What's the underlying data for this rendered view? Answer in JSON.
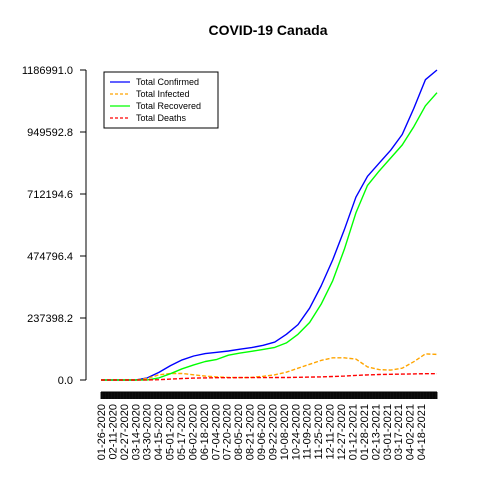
{
  "chart_data": {
    "type": "line",
    "title": "COVID-19 Canada",
    "xlabel": "",
    "ylabel": "",
    "ylim": [
      0,
      1186991.0
    ],
    "y_ticks": [
      "0.0",
      "237398.2",
      "474796.4",
      "712194.6",
      "949592.8",
      "1186991.0"
    ],
    "y_tick_values": [
      0,
      237398.2,
      474796.4,
      712194.6,
      949592.8,
      1186991.0
    ],
    "x_tick_labels": [
      "01-26-2020",
      "02-11-2020",
      "02-27-2020",
      "03-14-2020",
      "03-30-2020",
      "04-15-2020",
      "05-01-2020",
      "05-17-2020",
      "06-02-2020",
      "06-18-2020",
      "07-04-2020",
      "07-20-2020",
      "08-05-2020",
      "08-21-2020",
      "09-06-2020",
      "09-22-2020",
      "10-08-2020",
      "10-24-2020",
      "11-09-2020",
      "11-25-2020",
      "12-11-2020",
      "12-27-2020",
      "01-12-2021",
      "01-28-2021",
      "02-13-2021",
      "03-01-2021",
      "03-17-2021",
      "04-02-2021",
      "04-18-2021"
    ],
    "legend_position": "top-left",
    "x": [
      "01-26-2020",
      "02-11-2020",
      "02-27-2020",
      "03-14-2020",
      "03-30-2020",
      "04-15-2020",
      "05-01-2020",
      "05-17-2020",
      "06-02-2020",
      "06-18-2020",
      "07-04-2020",
      "07-20-2020",
      "08-05-2020",
      "08-21-2020",
      "09-06-2020",
      "09-22-2020",
      "10-08-2020",
      "10-24-2020",
      "11-09-2020",
      "11-25-2020",
      "12-11-2020",
      "12-27-2020",
      "01-12-2021",
      "01-28-2021",
      "02-13-2021",
      "03-01-2021",
      "03-17-2021",
      "04-02-2021",
      "04-18-2021",
      "04-30-2021"
    ],
    "series": [
      {
        "name": "Total Confirmed",
        "color": "#0000ff",
        "dash": "solid",
        "values": [
          1,
          7,
          12,
          150,
          8000,
          29000,
          55000,
          77000,
          92000,
          101000,
          106000,
          111000,
          118000,
          124000,
          133000,
          145000,
          175000,
          212000,
          275000,
          360000,
          460000,
          575000,
          700000,
          780000,
          830000,
          880000,
          940000,
          1040000,
          1150000,
          1186991
        ]
      },
      {
        "name": "Total Infected",
        "color": "#ffa500",
        "dash": "dashed",
        "values": [
          1,
          6,
          6,
          120,
          6000,
          20000,
          25000,
          25000,
          20000,
          15000,
          12000,
          10000,
          9000,
          10000,
          14000,
          20000,
          30000,
          45000,
          60000,
          75000,
          85000,
          85000,
          80000,
          50000,
          40000,
          38000,
          45000,
          70000,
          100000,
          98000
        ]
      },
      {
        "name": "Total Recovered",
        "color": "#00ff00",
        "dash": "solid",
        "values": [
          0,
          1,
          5,
          10,
          500,
          8000,
          24000,
          43000,
          58000,
          71000,
          79000,
          95000,
          103000,
          110000,
          117000,
          125000,
          142000,
          175000,
          220000,
          290000,
          380000,
          500000,
          640000,
          745000,
          800000,
          850000,
          900000,
          970000,
          1050000,
          1100000
        ]
      },
      {
        "name": "Total Deaths",
        "color": "#ff0000",
        "dash": "dashed",
        "values": [
          0,
          0,
          0,
          1,
          200,
          1300,
          3300,
          5800,
          7400,
          8200,
          8700,
          8900,
          9000,
          9100,
          9200,
          9400,
          9700,
          10200,
          11000,
          12000,
          13500,
          15000,
          17500,
          19500,
          21000,
          22000,
          22500,
          23500,
          24000,
          24300
        ]
      }
    ]
  }
}
